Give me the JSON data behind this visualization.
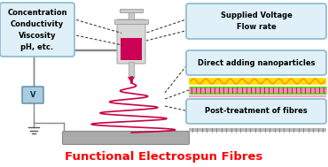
{
  "bg_color": "#ffffff",
  "title_text": "Functional Electrospun Fibres",
  "title_color": "#ff0000",
  "title_fontsize": 9.5,
  "box1_text": "Concentration\nConductivity\nViscosity\npH, etc.",
  "box2_text": "Supplied Voltage\nFlow rate",
  "box3_text": "Direct adding nanoparticles",
  "box4_text": "Post-treatment of fibres",
  "box_facecolor": "#dff0f8",
  "box_edgecolor": "#88bbcc",
  "spiral_color": "#cc0044",
  "wire_color": "#888888",
  "collector_color": "#aaaaaa",
  "dashed_color": "#333333",
  "syringe_barrel_color": "#d8d8d8",
  "syringe_liquid_color": "#cc0055",
  "syringe_needle_color": "#cccccc",
  "voltage_box_face": "#aaccdd",
  "voltage_box_edge": "#5588aa"
}
